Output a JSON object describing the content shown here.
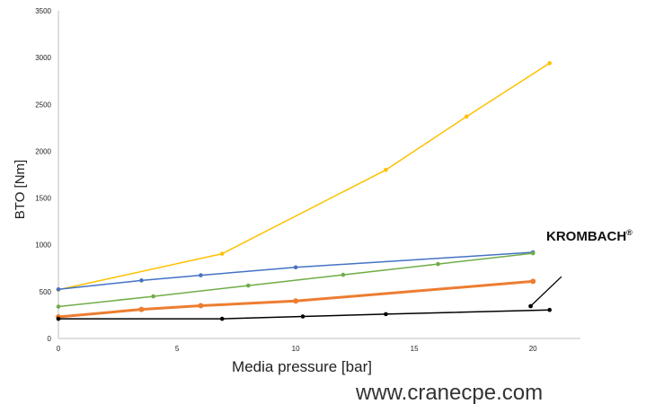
{
  "chart_data": {
    "type": "line",
    "title": "",
    "xlabel": "Media pressure [bar]",
    "ylabel": "BTO [Nm]",
    "xlim": [
      0,
      22
    ],
    "ylim": [
      0,
      3500
    ],
    "x_ticks": [
      0,
      5,
      10,
      15,
      20
    ],
    "y_ticks": [
      0,
      500,
      1000,
      1500,
      2000,
      2500,
      3000,
      3500
    ],
    "grid": false,
    "series": [
      {
        "color": "#ffc000",
        "width": 1.5,
        "points": [
          [
            0,
            520
          ],
          [
            6.9,
            905
          ],
          [
            13.8,
            1800
          ],
          [
            17.2,
            2370
          ],
          [
            20.7,
            2940
          ]
        ]
      },
      {
        "color": "#4472c4",
        "width": 1.5,
        "points": [
          [
            0,
            525
          ],
          [
            3.5,
            620
          ],
          [
            6,
            675
          ],
          [
            10,
            760
          ],
          [
            20,
            920
          ]
        ]
      },
      {
        "color": "#70ad47",
        "width": 1.5,
        "points": [
          [
            0,
            340
          ],
          [
            4,
            450
          ],
          [
            8,
            565
          ],
          [
            12,
            680
          ],
          [
            16,
            795
          ],
          [
            20,
            910
          ]
        ]
      },
      {
        "color": "#ed7d31",
        "width": 3,
        "points": [
          [
            0,
            230
          ],
          [
            3.5,
            310
          ],
          [
            6,
            350
          ],
          [
            10,
            400
          ],
          [
            20,
            610
          ]
        ]
      },
      {
        "color": "#000000",
        "width": 1.5,
        "points": [
          [
            0,
            210
          ],
          [
            6.9,
            210
          ],
          [
            10.3,
            235
          ],
          [
            13.8,
            260
          ],
          [
            20.7,
            305
          ]
        ]
      }
    ],
    "annotation": {
      "text": "KROMBACH",
      "mark": "®",
      "line_from": [
        19.9,
        345
      ],
      "line_to": [
        21.2,
        660
      ]
    }
  },
  "watermark": "www.cranecpe.com"
}
